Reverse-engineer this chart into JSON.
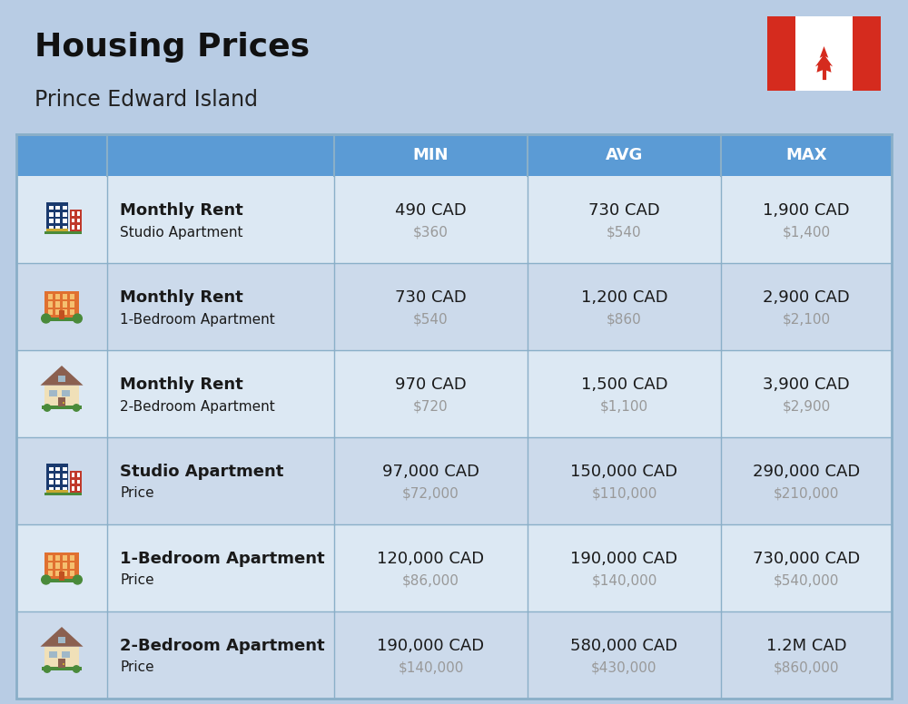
{
  "title": "Housing Prices",
  "subtitle": "Prince Edward Island",
  "bg_color": "#b8cce4",
  "header_bg": "#5b9bd5",
  "header_text_color": "#ffffff",
  "row_bg_even": "#ccdaeb",
  "row_bg_odd": "#dce8f3",
  "col_headers": [
    "MIN",
    "AVG",
    "MAX"
  ],
  "rows": [
    {
      "bold_label": "Monthly Rent",
      "sub_label": "Studio Apartment",
      "min_cad": "490 CAD",
      "min_usd": "$360",
      "avg_cad": "730 CAD",
      "avg_usd": "$540",
      "max_cad": "1,900 CAD",
      "max_usd": "$1,400",
      "icon": "blue_office"
    },
    {
      "bold_label": "Monthly Rent",
      "sub_label": "1-Bedroom Apartment",
      "min_cad": "730 CAD",
      "min_usd": "$540",
      "avg_cad": "1,200 CAD",
      "avg_usd": "$860",
      "max_cad": "2,900 CAD",
      "max_usd": "$2,100",
      "icon": "orange_apartment"
    },
    {
      "bold_label": "Monthly Rent",
      "sub_label": "2-Bedroom Apartment",
      "min_cad": "970 CAD",
      "min_usd": "$720",
      "avg_cad": "1,500 CAD",
      "avg_usd": "$1,100",
      "max_cad": "3,900 CAD",
      "max_usd": "$2,900",
      "icon": "beige_house"
    },
    {
      "bold_label": "Studio Apartment",
      "sub_label": "Price",
      "min_cad": "97,000 CAD",
      "min_usd": "$72,000",
      "avg_cad": "150,000 CAD",
      "avg_usd": "$110,000",
      "max_cad": "290,000 CAD",
      "max_usd": "$210,000",
      "icon": "blue_office"
    },
    {
      "bold_label": "1-Bedroom Apartment",
      "sub_label": "Price",
      "min_cad": "120,000 CAD",
      "min_usd": "$86,000",
      "avg_cad": "190,000 CAD",
      "avg_usd": "$140,000",
      "max_cad": "730,000 CAD",
      "max_usd": "$540,000",
      "icon": "orange_apartment"
    },
    {
      "bold_label": "2-Bedroom Apartment",
      "sub_label": "Price",
      "min_cad": "190,000 CAD",
      "min_usd": "$140,000",
      "avg_cad": "580,000 CAD",
      "avg_usd": "$430,000",
      "max_cad": "1.2M CAD",
      "max_usd": "$860,000",
      "icon": "beige_house2"
    }
  ],
  "cell_text_color": "#1a1a1a",
  "sub_text_color": "#999999",
  "divider_color": "#8aafc8",
  "flag_red": "#d52b1e",
  "title_fontsize": 26,
  "subtitle_fontsize": 17,
  "header_fontsize": 13,
  "cell_fontsize": 13,
  "sub_fontsize": 11
}
